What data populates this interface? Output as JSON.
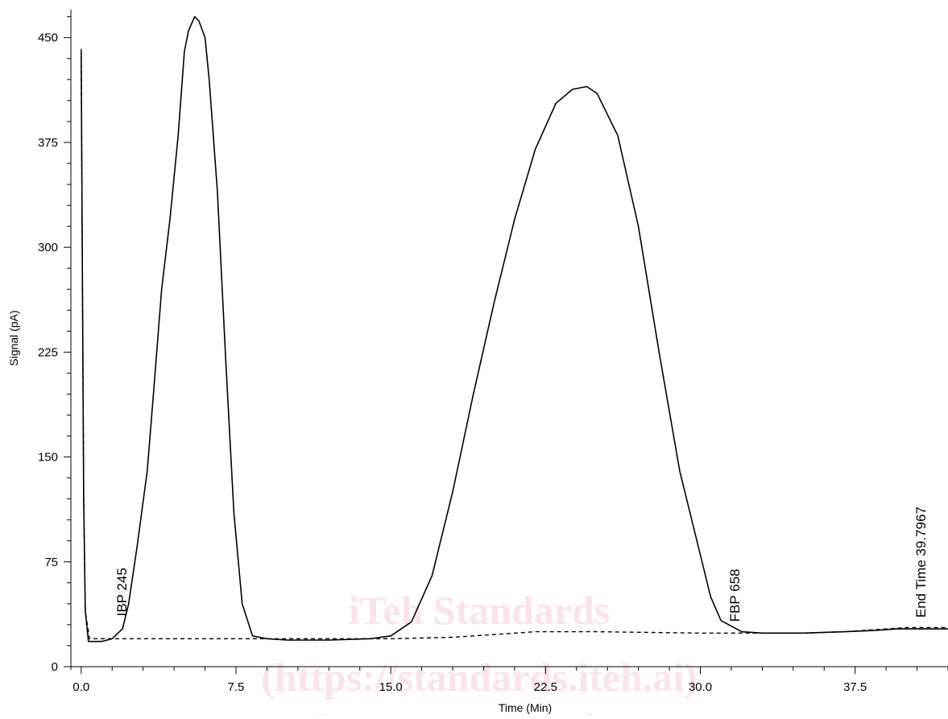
{
  "chart_data": {
    "type": "line",
    "title": "",
    "xlabel": "Time (Min)",
    "ylabel": "Signal (pA)",
    "xlim": [
      -0.5,
      42.0
    ],
    "ylim": [
      0,
      470
    ],
    "x_ticks": [
      "0.0",
      "7.5",
      "15.0",
      "22.5",
      "30.0",
      "37.5"
    ],
    "y_ticks": [
      "0",
      "75",
      "150",
      "225",
      "300",
      "375",
      "450"
    ],
    "grid": false,
    "legend": "none",
    "series": [
      {
        "style": "solid",
        "color": "#000000",
        "x": [
          0.0,
          0.05,
          0.12,
          0.2,
          0.35,
          0.6,
          1.0,
          1.5,
          2.0,
          2.3,
          2.7,
          3.2,
          3.5,
          3.9,
          4.3,
          4.7,
          5.0,
          5.2,
          5.5,
          5.7,
          6.0,
          6.2,
          6.6,
          7.0,
          7.4,
          7.8,
          8.3,
          9.0,
          10.0,
          12.0,
          14.0,
          15.0,
          16.0,
          17.0,
          18.0,
          19.0,
          20.0,
          21.0,
          22.0,
          23.0,
          23.8,
          24.5,
          25.0,
          26.0,
          27.0,
          28.0,
          29.0,
          30.0,
          30.5,
          31.0,
          32.0,
          33.0,
          34.0,
          35.0,
          37.0,
          38.5,
          39.5,
          40.5,
          42.0
        ],
        "y": [
          440,
          300,
          120,
          40,
          18,
          18,
          18,
          20,
          27,
          45,
          85,
          140,
          195,
          270,
          320,
          380,
          440,
          455,
          465,
          462,
          450,
          420,
          340,
          220,
          110,
          45,
          22,
          20,
          19,
          19,
          20,
          22,
          32,
          65,
          125,
          195,
          260,
          320,
          370,
          403,
          413,
          415,
          410,
          380,
          315,
          225,
          140,
          80,
          50,
          33,
          25,
          24,
          24,
          24,
          25,
          26,
          27,
          27,
          27
        ]
      },
      {
        "style": "dashed",
        "color": "#000000",
        "x": [
          0.0,
          0.05,
          0.12,
          0.2,
          0.4,
          1.0,
          5.0,
          10.0,
          15.0,
          18.0,
          20.0,
          22.0,
          25.0,
          30.0,
          35.0,
          37.0,
          40.0,
          42.0
        ],
        "y": [
          442,
          300,
          120,
          40,
          20,
          20,
          20,
          20,
          20,
          21,
          23,
          25,
          25,
          24,
          24,
          25,
          28,
          28
        ]
      }
    ],
    "annotations": [
      {
        "text": "IBP 245",
        "x": 2.2,
        "y": 28
      },
      {
        "text": "FBP 658",
        "x": 31.9,
        "y": 24
      },
      {
        "text": "End Time 39.7967",
        "x": 40.9,
        "y": 27
      }
    ]
  },
  "watermark": {
    "line1": "iTeh Standards",
    "line2": "(https://standards.iteh.ai)",
    "line3": "Document Preview"
  }
}
